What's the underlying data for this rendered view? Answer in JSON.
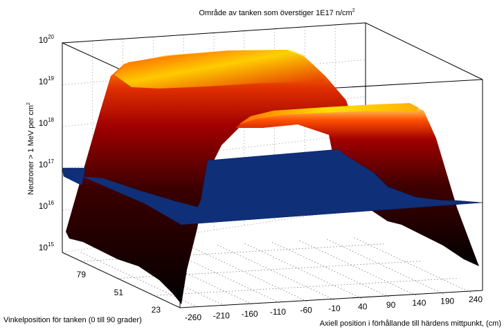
{
  "chart_data": {
    "type": "surface",
    "title": "Område av tanken som överstiger 1E17 n/cm",
    "title_sup": "2",
    "xlabel": "Axiell position i förhållande till härdens mittpunkt, (cm)",
    "ylabel": "Vinkelposition för tanken (0 till 90 grader)",
    "zlabel": "Neutroner > 1 MeV per cm",
    "zlabel_sup": "2",
    "x_ticks": [
      "-260",
      "-210",
      "-160",
      "-110",
      "-60",
      "-10",
      "40",
      "90",
      "140",
      "190",
      "240"
    ],
    "y_ticks": [
      "23",
      "51",
      "79"
    ],
    "z_ticks": [
      {
        "base": "10",
        "exp": "15"
      },
      {
        "base": "10",
        "exp": "16"
      },
      {
        "base": "10",
        "exp": "17"
      },
      {
        "base": "10",
        "exp": "18"
      },
      {
        "base": "10",
        "exp": "19"
      },
      {
        "base": "10",
        "exp": "20"
      }
    ],
    "z_scale": "log",
    "zlim": [
      1000000000000000.0,
      1e+20
    ],
    "xlim": [
      -290,
      260
    ],
    "ylim": [
      0,
      90
    ],
    "threshold_plane": {
      "z": 1e+17,
      "color": "#0f2f78"
    },
    "colormap": "hot",
    "grid": "dotted",
    "flux_profile": {
      "x": [
        -290,
        -270,
        -250,
        -230,
        -210,
        -190,
        -170,
        -150,
        -10,
        10,
        30,
        50,
        190,
        210,
        230,
        250,
        260
      ],
      "z": [
        1000000000000000.0,
        1000000000000000.0,
        1e+16,
        1e+17,
        1e+18,
        5e+18,
        1e+19,
        3e+19,
        3e+19,
        1e+19,
        5e+18,
        1e+18,
        1e+18,
        1e+17,
        1e+16,
        1000000000000000.0,
        1000000000000000.0
      ]
    }
  }
}
